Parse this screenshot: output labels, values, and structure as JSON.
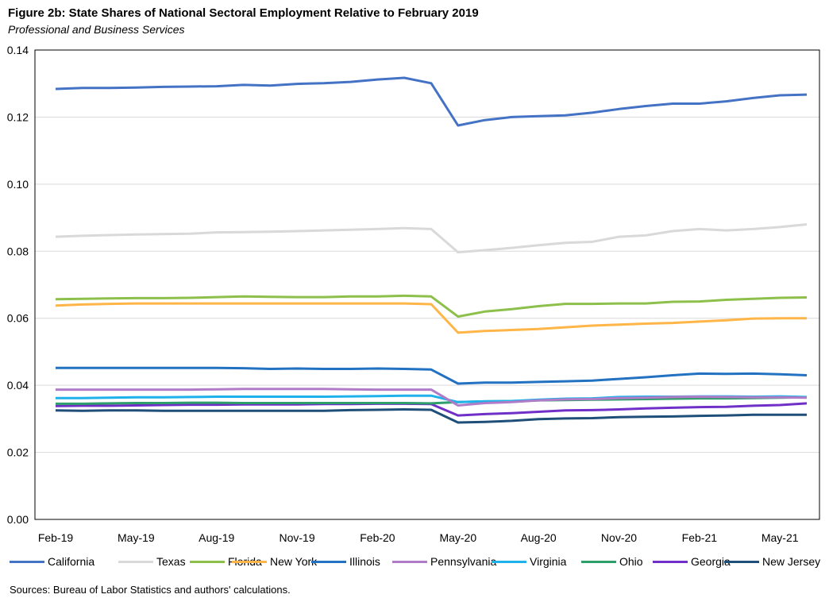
{
  "title": "Figure 2b: State Shares of National Sectoral Employment Relative to February 2019",
  "subtitle": "Professional and Business Services",
  "source": "Sources: Bureau of Labor Statistics and authors' calculations.",
  "chart_data": {
    "type": "line",
    "x": [
      "Feb-19",
      "Mar-19",
      "Apr-19",
      "May-19",
      "Jun-19",
      "Jul-19",
      "Aug-19",
      "Sep-19",
      "Oct-19",
      "Nov-19",
      "Dec-19",
      "Jan-20",
      "Feb-20",
      "Mar-20",
      "Apr-20",
      "May-20",
      "Jun-20",
      "Jul-20",
      "Aug-20",
      "Sep-20",
      "Oct-20",
      "Nov-20",
      "Dec-20",
      "Jan-21",
      "Feb-21",
      "Mar-21",
      "Apr-21",
      "May-21",
      "Jun-21"
    ],
    "x_tick_labels": [
      "Feb-19",
      "May-19",
      "Aug-19",
      "Nov-19",
      "Feb-20",
      "May-20",
      "Aug-20",
      "Nov-20",
      "Feb-21",
      "May-21"
    ],
    "y_tick_labels": [
      "0.00",
      "0.02",
      "0.04",
      "0.06",
      "0.08",
      "0.10",
      "0.12",
      "0.14"
    ],
    "ylim": [
      0,
      0.14
    ],
    "grid": true,
    "legend_position": "bottom",
    "series": [
      {
        "name": "California",
        "color": "#4472C4",
        "values": [
          0.1284,
          0.1287,
          0.1287,
          0.1288,
          0.129,
          0.1291,
          0.1292,
          0.1296,
          0.1294,
          0.1299,
          0.1301,
          0.1305,
          0.1312,
          0.1317,
          0.1301,
          0.1175,
          0.1191,
          0.12,
          0.1203,
          0.1205,
          0.1213,
          0.1224,
          0.1233,
          0.124,
          0.124,
          0.1247,
          0.1257,
          0.1265,
          0.1267
        ]
      },
      {
        "name": "Texas",
        "color": "#D9D9D9",
        "values": [
          0.0843,
          0.0846,
          0.0848,
          0.085,
          0.0851,
          0.0852,
          0.0856,
          0.0857,
          0.0858,
          0.086,
          0.0862,
          0.0864,
          0.0866,
          0.0869,
          0.0866,
          0.0797,
          0.0803,
          0.081,
          0.0818,
          0.0825,
          0.0828,
          0.0843,
          0.0847,
          0.086,
          0.0866,
          0.0862,
          0.0866,
          0.0872,
          0.088
        ]
      },
      {
        "name": "Florida",
        "color": "#8CC04A",
        "values": [
          0.0657,
          0.0658,
          0.0659,
          0.066,
          0.066,
          0.0661,
          0.0663,
          0.0665,
          0.0664,
          0.0663,
          0.0663,
          0.0665,
          0.0665,
          0.0667,
          0.0665,
          0.0605,
          0.062,
          0.0627,
          0.0636,
          0.0643,
          0.0643,
          0.0644,
          0.0644,
          0.0649,
          0.065,
          0.0655,
          0.0658,
          0.0661,
          0.0662
        ]
      },
      {
        "name": "New York",
        "color": "#FFB547",
        "values": [
          0.0638,
          0.0641,
          0.0643,
          0.0644,
          0.0644,
          0.0644,
          0.0644,
          0.0644,
          0.0644,
          0.0644,
          0.0644,
          0.0644,
          0.0644,
          0.0644,
          0.0642,
          0.0557,
          0.0562,
          0.0565,
          0.0568,
          0.0573,
          0.0578,
          0.0581,
          0.0584,
          0.0586,
          0.059,
          0.0594,
          0.0599,
          0.06,
          0.06
        ]
      },
      {
        "name": "Illinois",
        "color": "#2272C1",
        "values": [
          0.0452,
          0.0452,
          0.0452,
          0.0452,
          0.0452,
          0.0452,
          0.0452,
          0.0451,
          0.0449,
          0.045,
          0.0449,
          0.0449,
          0.045,
          0.0449,
          0.0447,
          0.0405,
          0.0408,
          0.0408,
          0.041,
          0.0412,
          0.0414,
          0.0419,
          0.0424,
          0.043,
          0.0435,
          0.0434,
          0.0435,
          0.0433,
          0.043
        ]
      },
      {
        "name": "Pennsylvania",
        "color": "#B07CC7",
        "values": [
          0.0387,
          0.0387,
          0.0387,
          0.0387,
          0.0387,
          0.0387,
          0.0388,
          0.0389,
          0.0389,
          0.0389,
          0.0389,
          0.0388,
          0.0387,
          0.0387,
          0.0387,
          0.034,
          0.0347,
          0.035,
          0.0355,
          0.0358,
          0.0359,
          0.0362,
          0.0363,
          0.0365,
          0.0366,
          0.0365,
          0.0364,
          0.0364,
          0.0363
        ]
      },
      {
        "name": "Virginia",
        "color": "#1FB1EA",
        "values": [
          0.0362,
          0.0362,
          0.0363,
          0.0364,
          0.0364,
          0.0365,
          0.0366,
          0.0366,
          0.0366,
          0.0366,
          0.0366,
          0.0367,
          0.0368,
          0.0369,
          0.0369,
          0.035,
          0.0352,
          0.0353,
          0.0357,
          0.036,
          0.0361,
          0.0365,
          0.0366,
          0.0366,
          0.0367,
          0.0367,
          0.0366,
          0.0367,
          0.0365
        ]
      },
      {
        "name": "Ohio",
        "color": "#2E9E6B",
        "values": [
          0.0345,
          0.0345,
          0.0346,
          0.0347,
          0.0347,
          0.0348,
          0.0348,
          0.0347,
          0.0347,
          0.0347,
          0.0347,
          0.0347,
          0.0347,
          0.0347,
          0.0346,
          0.035,
          0.0352,
          0.0353,
          0.0355,
          0.0356,
          0.0357,
          0.0358,
          0.0359,
          0.036,
          0.0361,
          0.0361,
          0.0362,
          0.0363,
          0.0364
        ]
      },
      {
        "name": "Georgia",
        "color": "#7030C8",
        "values": [
          0.0338,
          0.0339,
          0.0339,
          0.034,
          0.0341,
          0.0342,
          0.0342,
          0.0343,
          0.0343,
          0.0343,
          0.0344,
          0.0344,
          0.0345,
          0.0345,
          0.0344,
          0.031,
          0.0314,
          0.0317,
          0.0321,
          0.0325,
          0.0326,
          0.0328,
          0.0331,
          0.0333,
          0.0335,
          0.0336,
          0.0339,
          0.0341,
          0.0346
        ]
      },
      {
        "name": "New Jersey",
        "color": "#1F4E79",
        "values": [
          0.0325,
          0.0324,
          0.0325,
          0.0325,
          0.0324,
          0.0324,
          0.0324,
          0.0324,
          0.0324,
          0.0324,
          0.0324,
          0.0326,
          0.0327,
          0.0328,
          0.0327,
          0.0289,
          0.0291,
          0.0294,
          0.0299,
          0.0301,
          0.0302,
          0.0305,
          0.0306,
          0.0307,
          0.0309,
          0.031,
          0.0312,
          0.0312,
          0.0312
        ]
      }
    ]
  }
}
